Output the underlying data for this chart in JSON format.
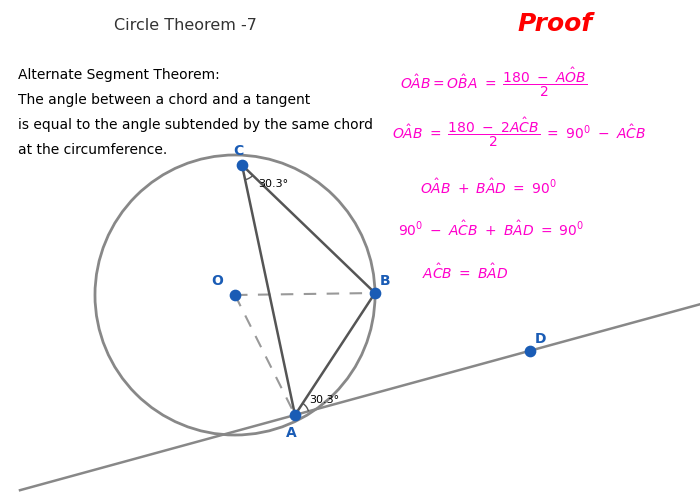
{
  "title": "Circle Theorem -7",
  "proof_title": "Proof",
  "theorem_lines": [
    "Alternate Segment Theorem:",
    "The angle between a chord and a tangent",
    "is equal to the angle subtended by the same chord",
    "at the circumference."
  ],
  "bg_color": "#ffffff",
  "circle_color": "#888888",
  "chord_color": "#555555",
  "dashed_color": "#999999",
  "tangent_color": "#888888",
  "point_color": "#1a5cb5",
  "point_label_color": "#1a5cb5",
  "title_color": "#333333",
  "proof_color": "#ff00cc",
  "angle_label": "30.3°",
  "point_size": 55,
  "circle_lw": 2.0,
  "chord_lw": 1.8,
  "tangent_lw": 1.8,
  "dashed_lw": 1.5,
  "figw": 7.0,
  "figh": 5.0,
  "dpi": 100
}
